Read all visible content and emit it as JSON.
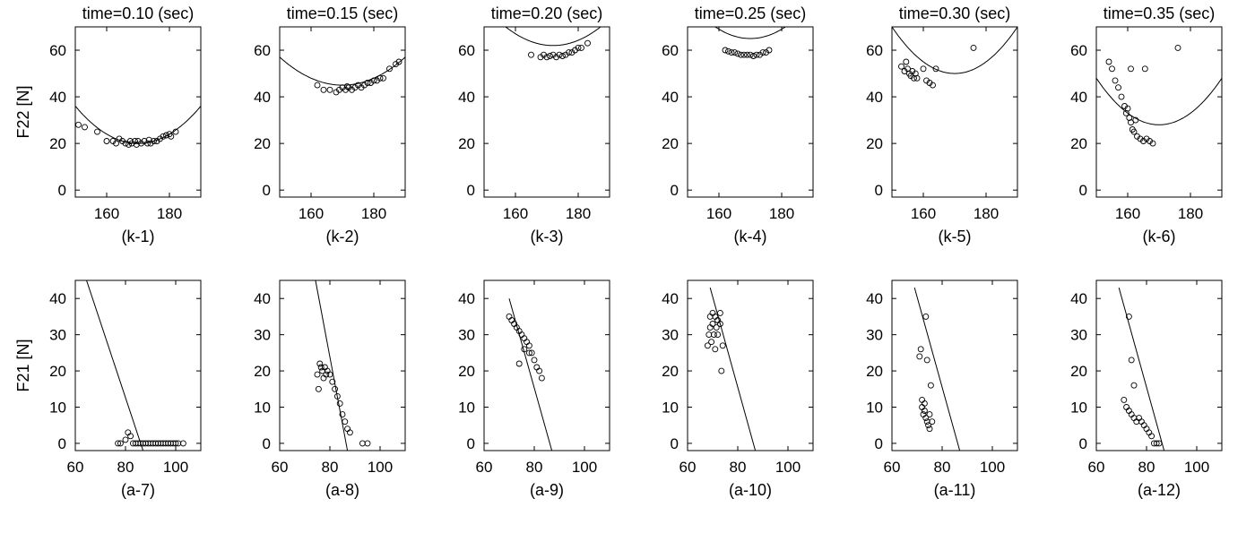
{
  "chart_data": [
    {
      "id": "k-1",
      "type": "scatter",
      "title": "time=0.10 (sec)",
      "ylabel": "F22 [N]",
      "caption": "(k-1)",
      "xlim": [
        150,
        190
      ],
      "ylim": [
        -3,
        70
      ],
      "xticks": [
        160,
        180
      ],
      "yticks": [
        0,
        20,
        40,
        60
      ],
      "curve": {
        "kind": "parabola",
        "vertex": [
          170,
          20
        ],
        "coef": 0.04
      },
      "points": [
        [
          151,
          28
        ],
        [
          153,
          27
        ],
        [
          157,
          25
        ],
        [
          160,
          21
        ],
        [
          162,
          21
        ],
        [
          163,
          20
        ],
        [
          164,
          22
        ],
        [
          165,
          21
        ],
        [
          166,
          20
        ],
        [
          167,
          19.5
        ],
        [
          167.5,
          21
        ],
        [
          168,
          20
        ],
        [
          169,
          21
        ],
        [
          169.5,
          19.5
        ],
        [
          170,
          21
        ],
        [
          171,
          20
        ],
        [
          172,
          21
        ],
        [
          173,
          20
        ],
        [
          173.5,
          21.5
        ],
        [
          174,
          20
        ],
        [
          175,
          21
        ],
        [
          176,
          21
        ],
        [
          177,
          22
        ],
        [
          178,
          23
        ],
        [
          179,
          23.5
        ],
        [
          180,
          24
        ],
        [
          180.5,
          23
        ],
        [
          182,
          25
        ]
      ]
    },
    {
      "id": "k-2",
      "type": "scatter",
      "title": "time=0.15 (sec)",
      "caption": "(k-2)",
      "xlim": [
        150,
        190
      ],
      "ylim": [
        -3,
        70
      ],
      "xticks": [
        160,
        180
      ],
      "yticks": [
        0,
        20,
        40,
        60
      ],
      "curve": {
        "kind": "parabola",
        "vertex": [
          170,
          45
        ],
        "coef": 0.03
      },
      "points": [
        [
          162,
          45
        ],
        [
          164,
          43
        ],
        [
          166,
          43
        ],
        [
          168,
          42
        ],
        [
          169,
          43
        ],
        [
          170,
          44
        ],
        [
          171,
          43
        ],
        [
          171.5,
          44.5
        ],
        [
          172,
          44
        ],
        [
          173,
          43
        ],
        [
          174,
          44
        ],
        [
          175,
          45
        ],
        [
          176,
          44
        ],
        [
          177,
          45
        ],
        [
          178,
          46
        ],
        [
          179,
          46
        ],
        [
          180,
          47
        ],
        [
          181,
          47
        ],
        [
          182,
          48
        ],
        [
          183,
          48
        ],
        [
          185,
          52
        ],
        [
          187,
          54
        ],
        [
          188,
          55
        ]
      ]
    },
    {
      "id": "k-3",
      "type": "scatter",
      "title": "time=0.20 (sec)",
      "caption": "(k-3)",
      "xlim": [
        150,
        190
      ],
      "ylim": [
        -3,
        70
      ],
      "xticks": [
        160,
        180
      ],
      "yticks": [
        0,
        20,
        40,
        60
      ],
      "curve": {
        "kind": "parabola",
        "vertex": [
          172,
          62
        ],
        "coef": 0.035
      },
      "points": [
        [
          165,
          58
        ],
        [
          168,
          57
        ],
        [
          169,
          58
        ],
        [
          170,
          57
        ],
        [
          171,
          57.5
        ],
        [
          172,
          58
        ],
        [
          173,
          57
        ],
        [
          174,
          58
        ],
        [
          175,
          57.5
        ],
        [
          176,
          58
        ],
        [
          177,
          59
        ],
        [
          178,
          59
        ],
        [
          179,
          60
        ],
        [
          180,
          61
        ],
        [
          181,
          61
        ],
        [
          183,
          63
        ]
      ]
    },
    {
      "id": "k-4",
      "type": "scatter",
      "title": "time=0.25 (sec)",
      "caption": "(k-4)",
      "xlim": [
        150,
        190
      ],
      "ylim": [
        -3,
        70
      ],
      "xticks": [
        160,
        180
      ],
      "yticks": [
        0,
        20,
        40,
        60
      ],
      "curve": {
        "kind": "parabola",
        "vertex": [
          170,
          65
        ],
        "coef": 0.04
      },
      "points": [
        [
          162,
          60
        ],
        [
          163,
          59.5
        ],
        [
          164,
          59
        ],
        [
          165,
          59
        ],
        [
          166,
          58.5
        ],
        [
          167,
          58
        ],
        [
          168,
          58
        ],
        [
          169,
          58
        ],
        [
          170,
          58
        ],
        [
          171,
          57.5
        ],
        [
          172,
          58
        ],
        [
          173,
          58
        ],
        [
          174,
          59
        ],
        [
          175,
          59
        ],
        [
          176,
          60
        ]
      ]
    },
    {
      "id": "k-5",
      "type": "scatter",
      "title": "time=0.30 (sec)",
      "caption": "(k-5)",
      "xlim": [
        150,
        190
      ],
      "ylim": [
        -3,
        70
      ],
      "xticks": [
        160,
        180
      ],
      "yticks": [
        0,
        20,
        40,
        60
      ],
      "curve": {
        "kind": "parabola",
        "vertex": [
          170,
          50
        ],
        "coef": 0.05
      },
      "points": [
        [
          153,
          53
        ],
        [
          154,
          51
        ],
        [
          154.5,
          55
        ],
        [
          155,
          52
        ],
        [
          155.5,
          50
        ],
        [
          156,
          49
        ],
        [
          156.5,
          51
        ],
        [
          157,
          48
        ],
        [
          157.5,
          50
        ],
        [
          158,
          48
        ],
        [
          160,
          52
        ],
        [
          161,
          47
        ],
        [
          162,
          46
        ],
        [
          163,
          45
        ],
        [
          164,
          52
        ],
        [
          176,
          61
        ]
      ]
    },
    {
      "id": "k-6",
      "type": "scatter",
      "title": "time=0.35 (sec)",
      "caption": "(k-6)",
      "xlim": [
        150,
        190
      ],
      "ylim": [
        -3,
        70
      ],
      "xticks": [
        160,
        180
      ],
      "yticks": [
        0,
        20,
        40,
        60
      ],
      "curve": {
        "kind": "parabola",
        "vertex": [
          170,
          28
        ],
        "coef": 0.05
      },
      "points": [
        [
          154,
          55
        ],
        [
          155,
          52
        ],
        [
          156,
          47
        ],
        [
          157,
          44
        ],
        [
          158,
          40
        ],
        [
          159,
          36
        ],
        [
          159.5,
          33
        ],
        [
          160,
          35
        ],
        [
          160.5,
          31
        ],
        [
          161,
          52
        ],
        [
          161,
          29
        ],
        [
          161.5,
          26
        ],
        [
          162,
          25
        ],
        [
          162.5,
          30
        ],
        [
          163,
          23
        ],
        [
          164,
          22
        ],
        [
          165,
          21
        ],
        [
          165.5,
          52
        ],
        [
          166,
          22
        ],
        [
          167,
          21
        ],
        [
          168,
          20
        ],
        [
          176,
          61
        ]
      ]
    },
    {
      "id": "a-7",
      "type": "scatter",
      "ylabel": "F21 [N]",
      "caption": "(a-7)",
      "xlim": [
        60,
        110
      ],
      "ylim": [
        -2,
        45
      ],
      "xticks": [
        60,
        80,
        100
      ],
      "yticks": [
        0,
        10,
        20,
        30,
        40
      ],
      "curve": {
        "kind": "line",
        "from": [
          64,
          46
        ],
        "to": [
          87,
          -2
        ]
      },
      "points": [
        [
          77,
          0
        ],
        [
          78,
          0
        ],
        [
          80,
          1
        ],
        [
          81,
          3
        ],
        [
          82,
          2
        ],
        [
          83,
          0
        ],
        [
          84,
          0
        ],
        [
          85,
          0
        ],
        [
          86,
          0
        ],
        [
          87,
          0
        ],
        [
          88,
          0
        ],
        [
          89,
          0
        ],
        [
          90,
          0
        ],
        [
          91,
          0
        ],
        [
          92,
          0
        ],
        [
          93,
          0
        ],
        [
          94,
          0
        ],
        [
          95,
          0
        ],
        [
          96,
          0
        ],
        [
          97,
          0
        ],
        [
          98,
          0
        ],
        [
          99,
          0
        ],
        [
          100,
          0
        ],
        [
          101,
          0
        ],
        [
          103,
          0
        ]
      ]
    },
    {
      "id": "a-8",
      "type": "scatter",
      "caption": "(a-8)",
      "xlim": [
        60,
        110
      ],
      "ylim": [
        -2,
        45
      ],
      "xticks": [
        60,
        80,
        100
      ],
      "yticks": [
        0,
        10,
        20,
        30,
        40
      ],
      "curve": {
        "kind": "line",
        "from": [
          74,
          46
        ],
        "to": [
          87,
          -2
        ]
      },
      "points": [
        [
          75,
          19
        ],
        [
          75.5,
          15
        ],
        [
          76,
          22
        ],
        [
          76.5,
          21
        ],
        [
          77,
          20
        ],
        [
          77.5,
          18
        ],
        [
          78,
          21
        ],
        [
          78.5,
          19
        ],
        [
          79,
          20
        ],
        [
          80,
          19
        ],
        [
          81,
          17
        ],
        [
          82,
          15
        ],
        [
          83,
          13
        ],
        [
          84,
          11
        ],
        [
          85,
          8
        ],
        [
          86,
          6
        ],
        [
          87,
          4
        ],
        [
          88,
          3
        ],
        [
          93,
          0
        ],
        [
          95,
          0
        ]
      ]
    },
    {
      "id": "a-9",
      "type": "scatter",
      "caption": "(a-9)",
      "xlim": [
        60,
        110
      ],
      "ylim": [
        -2,
        45
      ],
      "xticks": [
        60,
        80,
        100
      ],
      "yticks": [
        0,
        10,
        20,
        30,
        40
      ],
      "curve": {
        "kind": "line",
        "from": [
          70,
          40
        ],
        "to": [
          87,
          -2
        ]
      },
      "points": [
        [
          70,
          35
        ],
        [
          71,
          34
        ],
        [
          72,
          33
        ],
        [
          73,
          32
        ],
        [
          74,
          31
        ],
        [
          74,
          22
        ],
        [
          75,
          30
        ],
        [
          76,
          29
        ],
        [
          76,
          26
        ],
        [
          77,
          28
        ],
        [
          78,
          27
        ],
        [
          78,
          25
        ],
        [
          79,
          25
        ],
        [
          80,
          23
        ],
        [
          81,
          21
        ],
        [
          82,
          20
        ],
        [
          83,
          18
        ]
      ]
    },
    {
      "id": "a-10",
      "type": "scatter",
      "caption": "(a-10)",
      "xlim": [
        60,
        110
      ],
      "ylim": [
        -2,
        45
      ],
      "xticks": [
        60,
        80,
        100
      ],
      "yticks": [
        0,
        10,
        20,
        30,
        40
      ],
      "curve": {
        "kind": "line",
        "from": [
          69,
          43
        ],
        "to": [
          87,
          -2
        ]
      },
      "points": [
        [
          68,
          27
        ],
        [
          68.5,
          30
        ],
        [
          69,
          32
        ],
        [
          69,
          35
        ],
        [
          69.5,
          28
        ],
        [
          70,
          36
        ],
        [
          70,
          33
        ],
        [
          70.5,
          30
        ],
        [
          71,
          35
        ],
        [
          71,
          26
        ],
        [
          71.5,
          32
        ],
        [
          72,
          34
        ],
        [
          72,
          30
        ],
        [
          73,
          36
        ],
        [
          73,
          33
        ],
        [
          73.5,
          20
        ],
        [
          74,
          27
        ]
      ]
    },
    {
      "id": "a-11",
      "type": "scatter",
      "caption": "(a-11)",
      "xlim": [
        60,
        110
      ],
      "ylim": [
        -2,
        45
      ],
      "xticks": [
        60,
        80,
        100
      ],
      "yticks": [
        0,
        10,
        20,
        30,
        40
      ],
      "curve": {
        "kind": "line",
        "from": [
          69,
          43
        ],
        "to": [
          87,
          -2
        ]
      },
      "points": [
        [
          71,
          24
        ],
        [
          71.5,
          26
        ],
        [
          72,
          12
        ],
        [
          72,
          10
        ],
        [
          72.5,
          8
        ],
        [
          73,
          11
        ],
        [
          73,
          9
        ],
        [
          73.5,
          7
        ],
        [
          73.5,
          35
        ],
        [
          74,
          6
        ],
        [
          74,
          23
        ],
        [
          74.5,
          5
        ],
        [
          75,
          8
        ],
        [
          75,
          4
        ],
        [
          75.5,
          16
        ],
        [
          76,
          6
        ]
      ]
    },
    {
      "id": "a-12",
      "type": "scatter",
      "caption": "(a-12)",
      "xlim": [
        60,
        110
      ],
      "ylim": [
        -2,
        45
      ],
      "xticks": [
        60,
        80,
        100
      ],
      "yticks": [
        0,
        10,
        20,
        30,
        40
      ],
      "curve": {
        "kind": "line",
        "from": [
          69,
          43
        ],
        "to": [
          87,
          -2
        ]
      },
      "points": [
        [
          71,
          12
        ],
        [
          72,
          10
        ],
        [
          73,
          9
        ],
        [
          73,
          35
        ],
        [
          74,
          8
        ],
        [
          74,
          23
        ],
        [
          75,
          7
        ],
        [
          75,
          16
        ],
        [
          76,
          6
        ],
        [
          77,
          7
        ],
        [
          78,
          6
        ],
        [
          79,
          5
        ],
        [
          80,
          4
        ],
        [
          81,
          3
        ],
        [
          82,
          2
        ],
        [
          83,
          0
        ],
        [
          84,
          0
        ],
        [
          85,
          0
        ]
      ]
    }
  ]
}
